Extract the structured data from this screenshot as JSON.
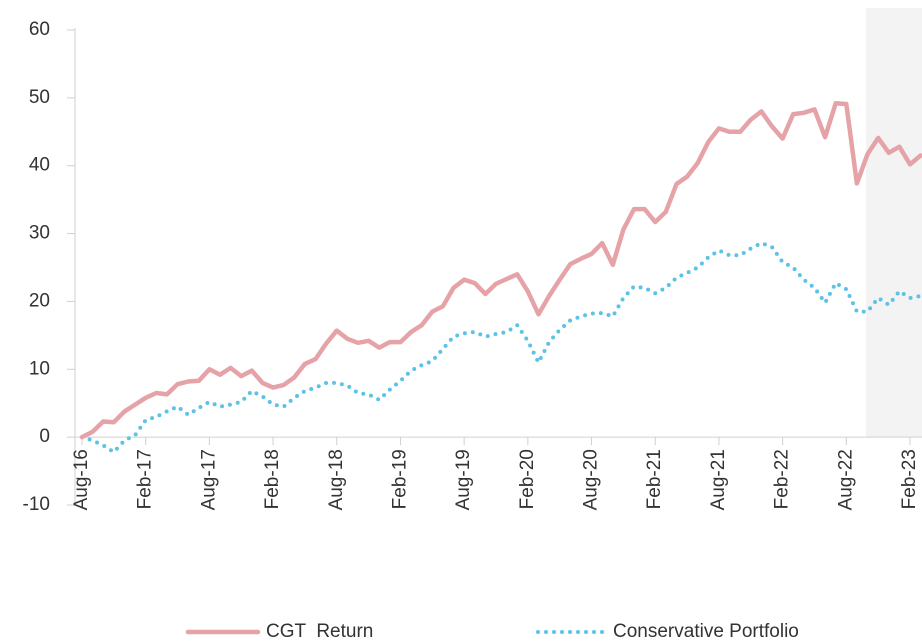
{
  "chart_data": {
    "type": "line",
    "categories": [
      "Aug-16",
      null,
      null,
      null,
      null,
      null,
      "Feb-17",
      null,
      null,
      null,
      null,
      null,
      "Aug-17",
      null,
      null,
      null,
      null,
      null,
      "Feb-18",
      null,
      null,
      null,
      null,
      null,
      "Aug-18",
      null,
      null,
      null,
      null,
      null,
      "Feb-19",
      null,
      null,
      null,
      null,
      null,
      "Aug-19",
      null,
      null,
      null,
      null,
      null,
      "Feb-20",
      null,
      null,
      null,
      null,
      null,
      "Aug-20",
      null,
      null,
      null,
      null,
      null,
      "Feb-21",
      null,
      null,
      null,
      null,
      null,
      "Aug-21",
      null,
      null,
      null,
      null,
      null,
      "Feb-22",
      null,
      null,
      null,
      null,
      null,
      "Aug-22",
      null,
      null,
      null,
      null,
      null,
      "Feb-23",
      null
    ],
    "series": [
      {
        "name": "CGT  Return",
        "color": "#e5a3a8",
        "style": "solid",
        "values": [
          0,
          0.8,
          2.3,
          2.2,
          3.8,
          4.8,
          5.8,
          6.5,
          6.3,
          7.8,
          8.2,
          8.3,
          10,
          9.2,
          10.2,
          9,
          9.8,
          8,
          7.3,
          7.7,
          8.8,
          10.8,
          11.5,
          13.8,
          15.7,
          14.5,
          13.9,
          14.2,
          13.2,
          14,
          14,
          15.5,
          16.5,
          18.5,
          19.3,
          22,
          23.2,
          22.7,
          21.1,
          22.6,
          23.3,
          24,
          21.5,
          18.1,
          20.8,
          23.2,
          25.5,
          26.3,
          27,
          28.6,
          25.4,
          30.6,
          33.6,
          33.6,
          31.7,
          33.2,
          37.3,
          38.4,
          40.4,
          43.5,
          45.5,
          45,
          45,
          46.8,
          48,
          45.8,
          44,
          47.6,
          47.8,
          48.3,
          44.2,
          49.2,
          49.1,
          37.4,
          41.7,
          44.1,
          41.9,
          42.8,
          40.2,
          41.5
        ]
      },
      {
        "name": "Conservative Portfolio",
        "color": "#5cc3e6",
        "style": "dotted",
        "values": [
          0,
          -0.5,
          -1.2,
          -2.2,
          -0.5,
          0.3,
          2.5,
          3,
          3.8,
          4.5,
          3.3,
          4.3,
          5.2,
          4.5,
          4.8,
          5.2,
          6.8,
          6,
          4.8,
          4.5,
          5.8,
          6.8,
          7.3,
          8,
          8,
          7.6,
          6.5,
          6.3,
          5.5,
          7,
          8.3,
          9.8,
          10.6,
          11.2,
          13,
          14.8,
          15.3,
          15.5,
          14.8,
          15.2,
          15.5,
          16.5,
          14.2,
          11,
          14,
          15.8,
          17.2,
          17.8,
          18.2,
          18.3,
          17.8,
          20.5,
          22.2,
          22,
          21.2,
          22,
          23.5,
          24.2,
          25,
          26.5,
          27.5,
          26.8,
          26.8,
          27.8,
          28.6,
          28,
          25.8,
          25,
          23.2,
          22,
          19.8,
          22.7,
          21.8,
          18.5,
          18.5,
          20.5,
          19.5,
          21.5,
          20.5,
          20.8
        ]
      }
    ],
    "ylim": [
      -10,
      60
    ],
    "yticks": [
      -10,
      0,
      10,
      20,
      30,
      40,
      50,
      60
    ],
    "grid": false
  }
}
